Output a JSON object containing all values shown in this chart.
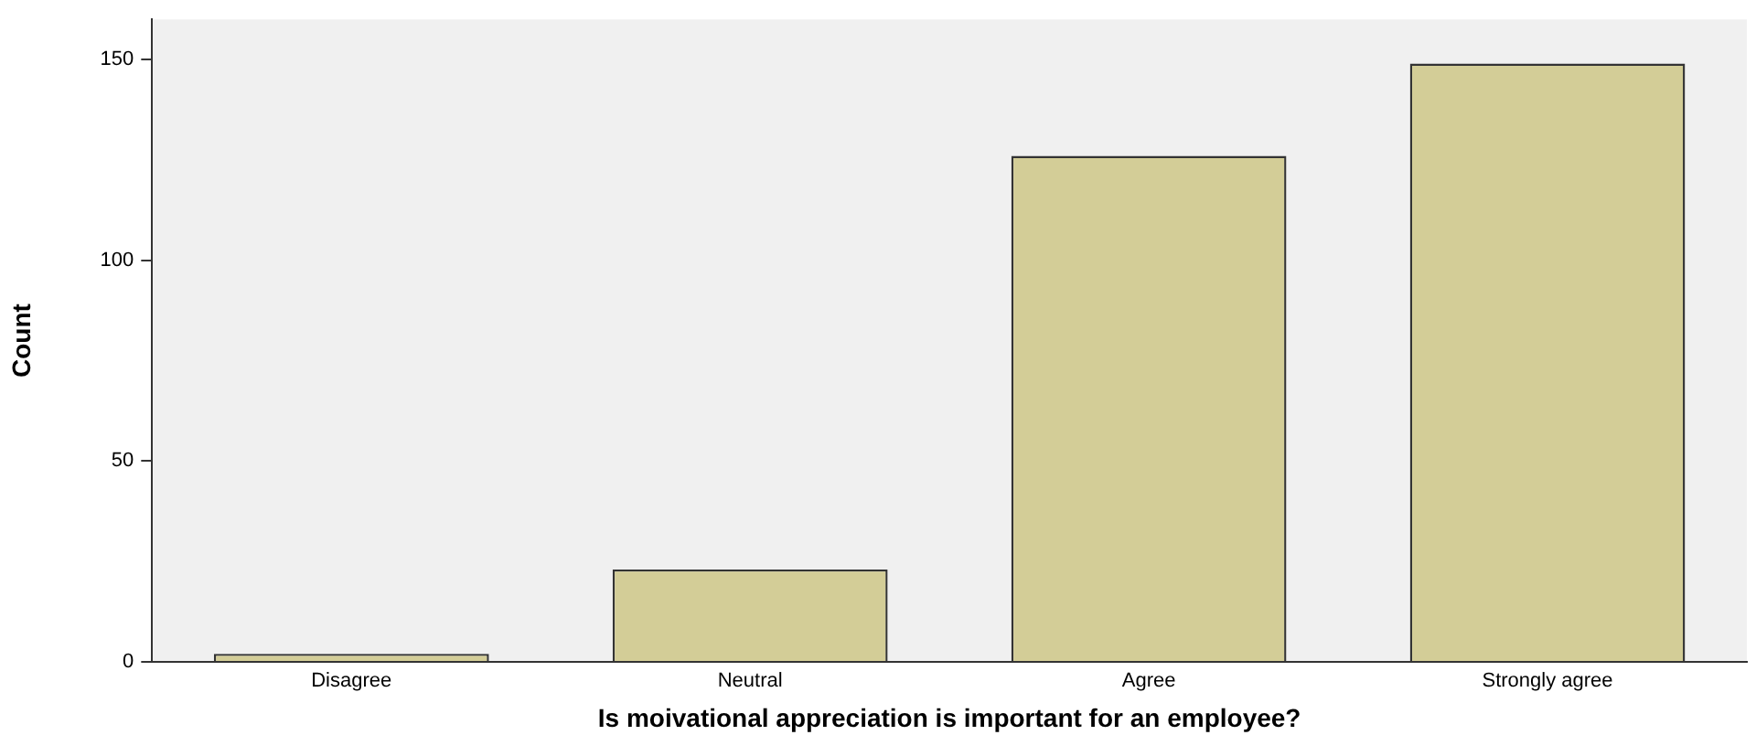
{
  "chart_data": {
    "type": "bar",
    "xlabel": "Is moivational appreciation is important for an employee?",
    "ylabel": "Count",
    "categories": [
      "Disagree",
      "Neutral",
      "Agree",
      "Strongly agree"
    ],
    "values": [
      2,
      23,
      126,
      149
    ],
    "color": "#d3cd97",
    "ylim": [
      0,
      160
    ],
    "yticks": [
      0,
      50,
      100,
      150
    ],
    "grid": false,
    "legend": false
  }
}
